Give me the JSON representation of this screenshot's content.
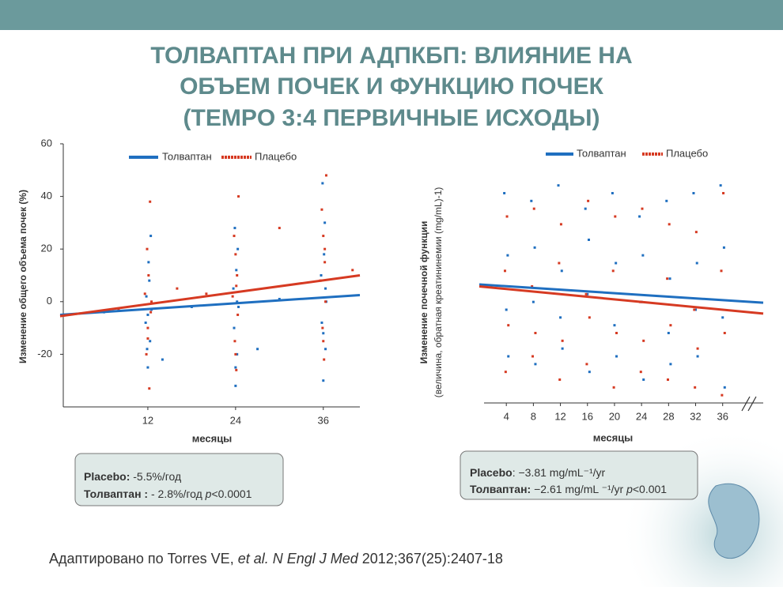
{
  "title": [
    "ТОЛВАПТАН ПРИ АДПКБП: ВЛИЯНИЕ НА",
    "ОБЪЕМ ПОЧЕК  И ФУНКЦИЮ ПОЧЕК",
    "(TEMPO 3:4 ПЕРВИЧНЫЕ ИСХОДЫ)"
  ],
  "chart_data": [
    {
      "type": "scatter",
      "xlabel": "месяцы",
      "ylabel": [
        "Изменение общего объема почек (%)"
      ],
      "xlim": [
        0,
        41
      ],
      "ylim": [
        -40,
        60
      ],
      "xticks": [
        12,
        24,
        36
      ],
      "yticks": [
        -20,
        0,
        20,
        40,
        60
      ],
      "series": [
        {
          "name": "Толваптан",
          "color": "#1f6fc0",
          "x": [
            12,
            12.3,
            11.7,
            12.5,
            11.8,
            12.2,
            12.1,
            11.9,
            12.4,
            12,
            24,
            24.2,
            23.8,
            24.4,
            23.7,
            24.1,
            24.3,
            23.9,
            24,
            24.2,
            36,
            36.3,
            35.8,
            36.4,
            35.7,
            36.1,
            36.2,
            35.9,
            36,
            36.3,
            6,
            18,
            30,
            14,
            27
          ],
          "values": [
            -25,
            -15,
            -8,
            -3,
            2,
            8,
            15,
            -18,
            25,
            -5,
            -32,
            -20,
            -10,
            -2,
            5,
            12,
            20,
            28,
            -25,
            0,
            -30,
            -18,
            -8,
            0,
            10,
            18,
            30,
            45,
            -12,
            5,
            -4,
            -2,
            1,
            -22,
            -18
          ],
          "trend": {
            "x": [
              0,
              41
            ],
            "values": [
              -5,
              2.5
            ]
          }
        },
        {
          "name": "Плацебо",
          "color": "#d63a22",
          "x": [
            12.2,
            11.8,
            12,
            12.4,
            11.6,
            12.1,
            11.9,
            12.3,
            12,
            12.5,
            24.1,
            23.9,
            24.3,
            23.6,
            24.2,
            24,
            23.8,
            24.4,
            24,
            24.1,
            36.1,
            35.9,
            36.3,
            35.6,
            36.2,
            36,
            35.8,
            36.4,
            36,
            36.2,
            8,
            16,
            20,
            30,
            40
          ],
          "values": [
            -33,
            -20,
            -10,
            -4,
            3,
            10,
            20,
            38,
            -14,
            0,
            -26,
            -15,
            -5,
            2,
            10,
            18,
            25,
            40,
            -20,
            6,
            -22,
            -10,
            0,
            8,
            15,
            25,
            35,
            48,
            -15,
            20,
            -3,
            5,
            3,
            28,
            12
          ],
          "trend": {
            "x": [
              0,
              41
            ],
            "values": [
              -5.5,
              10
            ]
          }
        }
      ]
    },
    {
      "type": "scatter",
      "xlabel": "месяцы",
      "ylabel": [
        "Изменение почечной функции",
        "(величина, обратная креатининемии  (mg/mL)-1)"
      ],
      "xlim": [
        0,
        42
      ],
      "ylim": [
        -15,
        15
      ],
      "xticks": [
        4,
        8,
        12,
        16,
        20,
        24,
        28,
        32,
        36
      ],
      "series": [
        {
          "name": "Толваптан",
          "color": "#1f6fc0",
          "x": [
            3.7,
            4.2,
            4,
            4.3,
            7.7,
            8.2,
            8,
            8.3,
            11.7,
            12.2,
            12,
            12.3,
            15.7,
            16.2,
            16,
            16.3,
            19.7,
            20.2,
            20,
            20.3,
            23.7,
            24.2,
            24,
            24.3,
            27.7,
            28.2,
            28,
            28.3,
            31.7,
            32.2,
            32,
            32.3,
            35.7,
            36.2,
            36,
            36.3
          ],
          "values": [
            12,
            4,
            -3,
            -9,
            11,
            5,
            -2,
            -10,
            13,
            2,
            -4,
            -8,
            10,
            6,
            -1,
            -11,
            12,
            3,
            -5,
            -9,
            9,
            4,
            -2,
            -12,
            11,
            1,
            -6,
            -10,
            12,
            3,
            -3,
            -9,
            13,
            5,
            -4,
            -13
          ],
          "trend": {
            "x": [
              0,
              42
            ],
            "values": [
              0.25,
              -2.1
            ]
          }
        },
        {
          "name": "Плацебо",
          "color": "#d63a22",
          "x": [
            4.1,
            3.8,
            4.3,
            3.9,
            8.1,
            7.8,
            8.3,
            7.9,
            12.1,
            11.8,
            12.3,
            11.9,
            16.1,
            15.8,
            16.3,
            15.9,
            20.1,
            19.8,
            20.3,
            19.9,
            24.1,
            23.8,
            24.3,
            23.9,
            28.1,
            27.8,
            28.3,
            27.9,
            32.1,
            31.8,
            32.3,
            31.9,
            36.1,
            35.8,
            36.3,
            35.9
          ],
          "values": [
            9,
            2,
            -5,
            -11,
            10,
            0,
            -6,
            -9,
            8,
            3,
            -7,
            -12,
            11,
            -1,
            -4,
            -10,
            9,
            2,
            -6,
            -13,
            10,
            -2,
            -7,
            -11,
            8,
            1,
            -5,
            -12,
            7,
            -3,
            -8,
            -13,
            12,
            2,
            -6,
            -14
          ],
          "trend": {
            "x": [
              0,
              42
            ],
            "values": [
              0,
              -3.5
            ]
          }
        }
      ]
    }
  ],
  "summary_boxes": [
    [
      [
        "Placebo:",
        " -5.5%/год"
      ],
      [
        "Толваптан :",
        " - 2.8%/год ",
        "p",
        "<0.0001"
      ]
    ],
    [
      [
        "Placebo",
        ": −3.81 mg/mL⁻¹/yr"
      ],
      [
        "Толваптан:",
        " −2.61 mg/mL ⁻¹/yr ",
        "p",
        "<0.001"
      ]
    ]
  ],
  "citation": [
    "Адаптировано по Torres VE, ",
    "et al. N Engl J Med",
    " 2012;367(25):2407-18"
  ]
}
